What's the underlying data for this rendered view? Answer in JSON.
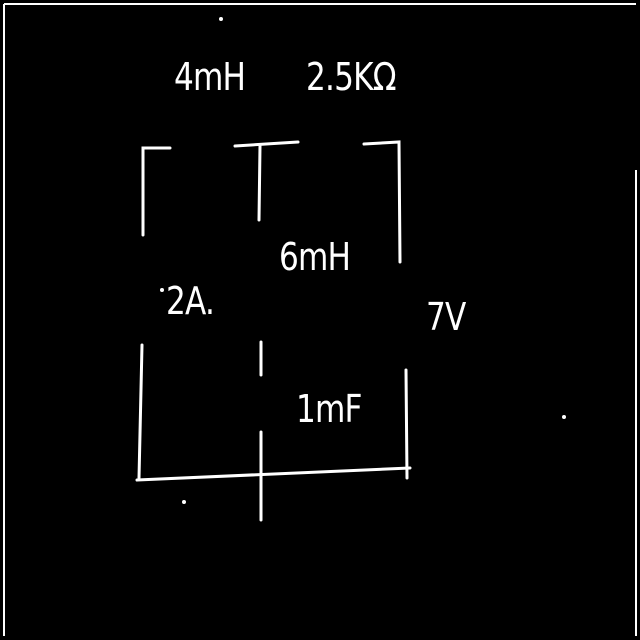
{
  "labels": {
    "inductor_top": "4mH",
    "resistor_top": "2.5KΩ",
    "inductor_middle": "6mH",
    "current_source": "2A.",
    "voltage_source": "7V",
    "capacitor": "1mF"
  },
  "colors": {
    "background": "#000000",
    "ink": "#ffffff"
  }
}
